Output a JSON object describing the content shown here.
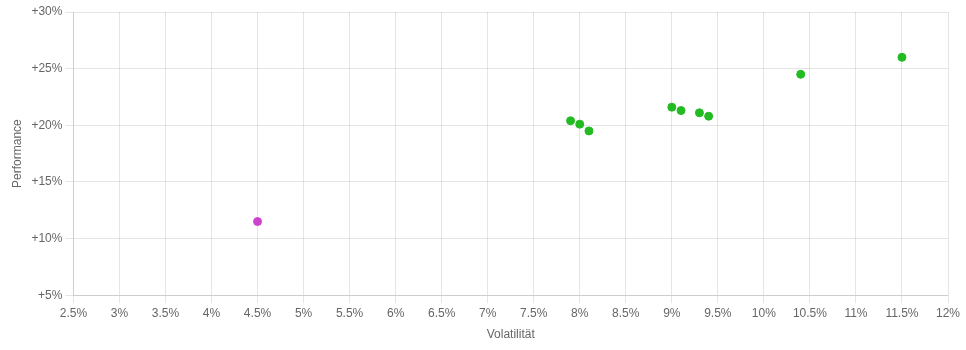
{
  "chart_data": {
    "type": "scatter",
    "xlabel": "Volatilität",
    "ylabel": "Performance",
    "xlim": [
      0.025,
      0.12
    ],
    "ylim": [
      0.05,
      0.3
    ],
    "xticks": [
      {
        "value": 0.025,
        "label": "2.5%"
      },
      {
        "value": 0.03,
        "label": "3%"
      },
      {
        "value": 0.035,
        "label": "3.5%"
      },
      {
        "value": 0.04,
        "label": "4%"
      },
      {
        "value": 0.045,
        "label": "4.5%"
      },
      {
        "value": 0.05,
        "label": "5%"
      },
      {
        "value": 0.055,
        "label": "5.5%"
      },
      {
        "value": 0.06,
        "label": "6%"
      },
      {
        "value": 0.065,
        "label": "6.5%"
      },
      {
        "value": 0.07,
        "label": "7%"
      },
      {
        "value": 0.075,
        "label": "7.5%"
      },
      {
        "value": 0.08,
        "label": "8%"
      },
      {
        "value": 0.085,
        "label": "8.5%"
      },
      {
        "value": 0.09,
        "label": "9%"
      },
      {
        "value": 0.095,
        "label": "9.5%"
      },
      {
        "value": 0.1,
        "label": "10%"
      },
      {
        "value": 0.105,
        "label": "10.5%"
      },
      {
        "value": 0.11,
        "label": "11%"
      },
      {
        "value": 0.115,
        "label": "11.5%"
      },
      {
        "value": 0.12,
        "label": "12%"
      }
    ],
    "yticks": [
      {
        "value": 0.05,
        "label": "+5%"
      },
      {
        "value": 0.1,
        "label": "+10%"
      },
      {
        "value": 0.15,
        "label": "+15%"
      },
      {
        "value": 0.2,
        "label": "+20%"
      },
      {
        "value": 0.25,
        "label": "+25%"
      },
      {
        "value": 0.3,
        "label": "+30%"
      }
    ],
    "grid": true,
    "series": [
      {
        "color": "#cc44cc",
        "x": [
          0.045
        ],
        "values": [
          0.115
        ]
      },
      {
        "color": "#22bb22",
        "x": [
          0.079,
          0.08,
          0.081,
          0.09,
          0.091,
          0.093,
          0.094,
          0.104,
          0.115
        ],
        "values": [
          0.204,
          0.201,
          0.195,
          0.216,
          0.213,
          0.211,
          0.208,
          0.245,
          0.26
        ]
      }
    ]
  }
}
